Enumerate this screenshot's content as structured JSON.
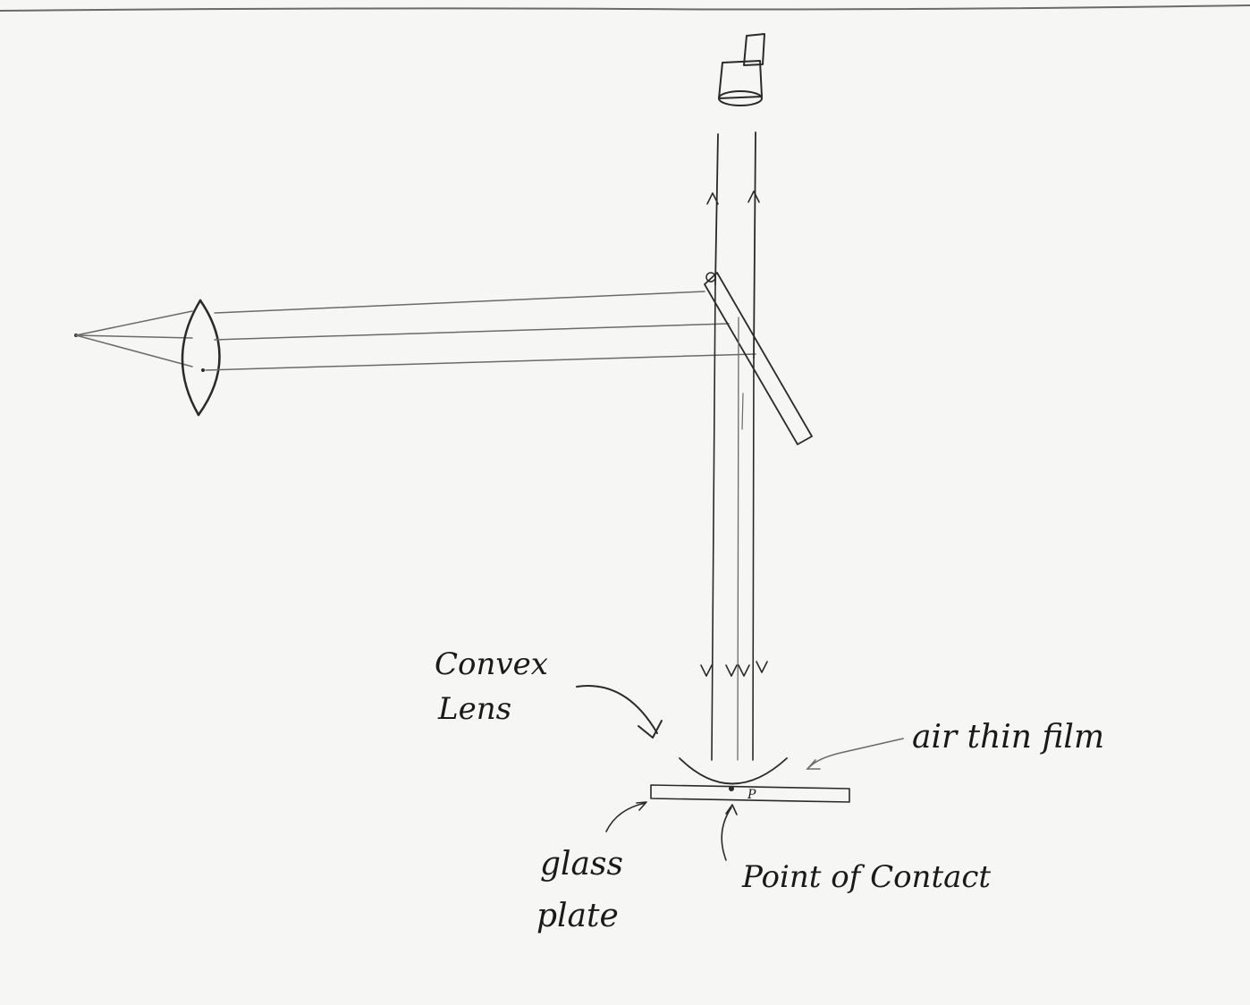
{
  "labels": {
    "convex_lens_line1": "Convex",
    "convex_lens_line2": "Lens",
    "air_thin_film": "air thin film",
    "glass_plate_line1": "glass",
    "glass_plate_line2": "plate",
    "point_of_contact": "Point of Contact",
    "point_p": "P"
  },
  "colors": {
    "paper": "#f6f6f4",
    "ink": "#2a2a2a"
  }
}
